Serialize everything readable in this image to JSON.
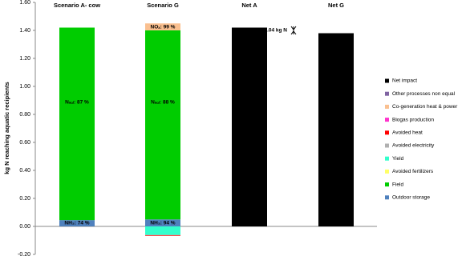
{
  "chart_data": {
    "type": "stacked-bar",
    "ylabel": "kg N reaching aquatic recipients",
    "categories": [
      "Scenario A- cow",
      "Scenario G",
      "Net A",
      "Net G"
    ],
    "ylim": [
      -0.2,
      1.6
    ],
    "yticks": [
      {
        "value": -0.2,
        "label": "-0.20"
      },
      {
        "value": 0,
        "label": "0.00"
      },
      {
        "value": 0.2,
        "label": "0.20"
      },
      {
        "value": 0.4,
        "label": "0.40"
      },
      {
        "value": 0.6,
        "label": "0.60"
      },
      {
        "value": 0.8,
        "label": "0.80"
      },
      {
        "value": 1,
        "label": "1.00"
      },
      {
        "value": 1.2,
        "label": "1.20"
      },
      {
        "value": 1.4,
        "label": "1.40"
      },
      {
        "value": 1.6,
        "label": "1.60"
      }
    ],
    "series": [
      {
        "name": "Outdoor storage",
        "color": "#4f81bd",
        "values": [
          0.045,
          0.05,
          0,
          0
        ]
      },
      {
        "name": "Field",
        "color": "#00cc00",
        "values": [
          1.375,
          1.35,
          0,
          0
        ]
      },
      {
        "name": "Avoided fertilizers",
        "color": "#ffff66",
        "values": [
          0,
          0,
          0,
          0
        ]
      },
      {
        "name": "Yield",
        "color": "#33ffcc",
        "values": [
          0,
          -0.06,
          0,
          0
        ]
      },
      {
        "name": "Avoided electricity",
        "color": "#b0b0b0",
        "values": [
          0,
          -0.003,
          0,
          0
        ]
      },
      {
        "name": "Avoided heat",
        "color": "#ff0000",
        "values": [
          0,
          -0.004,
          0,
          0
        ]
      },
      {
        "name": "Biogas production",
        "color": "#ff33cc",
        "values": [
          0,
          0,
          0,
          0
        ]
      },
      {
        "name": "Co-generation heat & power",
        "color": "#fac090",
        "values": [
          0,
          0.05,
          0,
          0
        ]
      },
      {
        "name": "Other processes non equal",
        "color": "#8064a2",
        "values": [
          0,
          0,
          0,
          0
        ]
      },
      {
        "name": "Net impact",
        "color": "#000000",
        "values": [
          0,
          0,
          1.42,
          1.38
        ]
      }
    ],
    "annotations": [
      "NH₃: 74 %",
      "Nₛₒₗ: 87 %",
      "NH₃: 94 %",
      "Nₛₒₗ: 88 %",
      "NOₓ: 99 %",
      "Δ=0.04 kg N"
    ]
  }
}
